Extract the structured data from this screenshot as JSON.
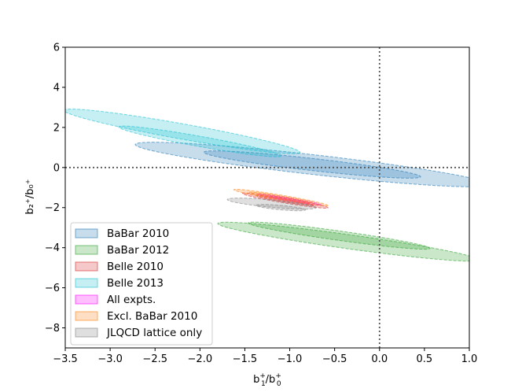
{
  "chart_data": {
    "type": "ellipse-contour",
    "xlabel_main": "b",
    "xlabel_sup1": "+",
    "xlabel_sub1": "1",
    "xlabel_slash": "/b",
    "xlabel_sup2": "+",
    "xlabel_sub2": "0",
    "ylabel": "b₂⁺/b₀⁺",
    "xlim": [
      -3.5,
      1.0
    ],
    "ylim": [
      -9,
      6
    ],
    "xticks": [
      -3.5,
      -3.0,
      -2.5,
      -2.0,
      -1.5,
      -1.0,
      -0.5,
      0.0,
      0.5,
      1.0
    ],
    "xtick_labels": [
      "−3.5",
      "−3.0",
      "−2.5",
      "−2.0",
      "−1.5",
      "−1.0",
      "−0.5",
      "0.0",
      "0.5",
      "1.0"
    ],
    "yticks": [
      -8,
      -6,
      -4,
      -2,
      0,
      2,
      4,
      6
    ],
    "ytick_labels": [
      "−8",
      "−6",
      "−4",
      "−2",
      "0",
      "2",
      "4",
      "6"
    ],
    "reference_lines": {
      "x": 0,
      "y": 0,
      "style": "dotted"
    },
    "legend_position": "lower-left",
    "series": [
      {
        "name": "BaBar 2010",
        "color": "#1f77b4",
        "ellipses": [
          {
            "level": "1σ",
            "cx": -0.75,
            "cy": 0.15,
            "rx": 1.36,
            "ry": 0.27,
            "angle": -28
          },
          {
            "level": "2σ",
            "cx": -0.75,
            "cy": 0.15,
            "rx": 2.22,
            "ry": 0.44,
            "angle": -28
          }
        ]
      },
      {
        "name": "BaBar 2012",
        "color": "#2ca02c",
        "ellipses": [
          {
            "level": "1σ",
            "cx": -0.45,
            "cy": -3.4,
            "rx": 1.2,
            "ry": 0.2,
            "angle": -33
          },
          {
            "level": "2σ",
            "cx": -0.35,
            "cy": -3.7,
            "rx": 1.72,
            "ry": 0.3,
            "angle": -33
          }
        ]
      },
      {
        "name": "Belle 2010",
        "color": "#d62728",
        "ellipses": [
          {
            "level": "1σ",
            "cx": -1.05,
            "cy": -1.65,
            "rx": 0.4,
            "ry": 0.06,
            "angle": -38
          },
          {
            "level": "2σ",
            "cx": -1.05,
            "cy": -1.65,
            "rx": 0.6,
            "ry": 0.1,
            "angle": -38
          }
        ]
      },
      {
        "name": "Belle 2013",
        "color": "#17becf",
        "ellipses": [
          {
            "level": "1σ",
            "cx": -2.0,
            "cy": 1.3,
            "rx": 1.17,
            "ry": 0.2,
            "angle": -40
          },
          {
            "level": "2σ",
            "cx": -2.2,
            "cy": 1.8,
            "rx": 1.7,
            "ry": 0.3,
            "angle": -40
          }
        ]
      },
      {
        "name": "All expts.",
        "color": "#ff00ff",
        "ellipses": [
          {
            "level": "1σ",
            "cx": -1.0,
            "cy": -1.6,
            "rx": 0.28,
            "ry": 0.04,
            "angle": -38
          },
          {
            "level": "2σ",
            "cx": -1.0,
            "cy": -1.6,
            "rx": 0.44,
            "ry": 0.07,
            "angle": -38
          }
        ]
      },
      {
        "name": "Excl. BaBar 2010",
        "color": "#ff7f0e",
        "ellipses": [
          {
            "level": "1σ",
            "cx": -1.1,
            "cy": -1.5,
            "rx": 0.44,
            "ry": 0.06,
            "angle": -38
          },
          {
            "level": "2σ",
            "cx": -1.1,
            "cy": -1.5,
            "rx": 0.66,
            "ry": 0.1,
            "angle": -38
          }
        ]
      },
      {
        "name": "JLQCD lattice only",
        "color": "#7f7f7f",
        "ellipses": [
          {
            "level": "1σ",
            "cx": -1.1,
            "cy": -2.0,
            "rx": 0.3,
            "ry": 0.1,
            "angle": -25
          },
          {
            "level": "2σ",
            "cx": -1.2,
            "cy": -1.8,
            "rx": 0.54,
            "ry": 0.17,
            "angle": -25
          }
        ]
      }
    ]
  }
}
